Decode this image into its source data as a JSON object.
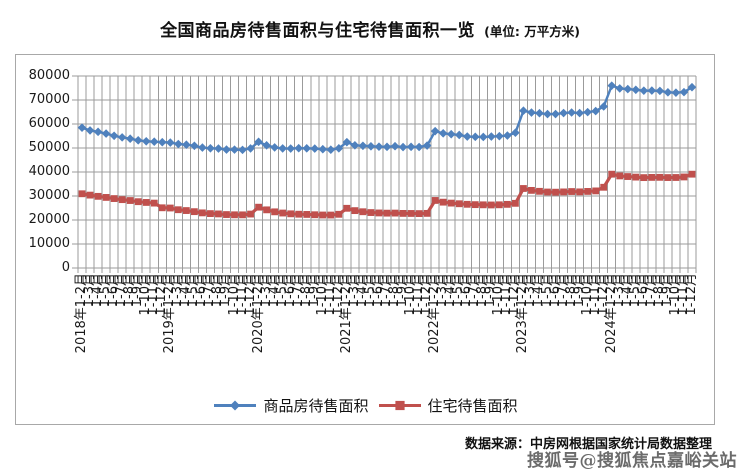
{
  "title": {
    "main": "全国商品房待售面积与住宅待售面积一览",
    "unit": "(单位: 万平方米)"
  },
  "legend": [
    {
      "label": "商品房待售面积",
      "color": "#4F81BD",
      "marker": "diamond"
    },
    {
      "label": "住宅待售面积",
      "color": "#C0504D",
      "marker": "square"
    }
  ],
  "footer": {
    "source": "数据来源：中房网根据国家统计局数据整理",
    "watermark": "搜狐号@搜狐焦点嘉峪关站"
  },
  "chart_data": {
    "type": "line",
    "title": "全国商品房待售面积与住宅待售面积一览",
    "unit": "万平方米",
    "xlabel": "",
    "ylabel": "",
    "ylim": [
      0,
      80000
    ],
    "yticks": [
      0,
      10000,
      20000,
      30000,
      40000,
      50000,
      60000,
      70000,
      80000
    ],
    "grid": "both",
    "legend_position": "bottom",
    "categories": [
      "2018年1-2月",
      "1-3月",
      "1-4月",
      "1-5月",
      "1-6月",
      "1-7月",
      "1-8月",
      "1-9月",
      "1-10月",
      "1-11月",
      "1-12月",
      "2019年1-2月",
      "1-3月",
      "1-4月",
      "1-5月",
      "1-6月",
      "1-7月",
      "1-8月",
      "1-9月",
      "1-10月",
      "1-11月",
      "1-12月",
      "2020年1-2月",
      "1-3月",
      "1-4月",
      "1-5月",
      "1-6月",
      "1-7月",
      "1-8月",
      "1-9月",
      "1-10月",
      "1-11月",
      "1-12月",
      "2021年1-2月",
      "1-3月",
      "1-4月",
      "1-5月",
      "1-6月",
      "1-7月",
      "1-8月",
      "1-9月",
      "1-10月",
      "1-11月",
      "1-12月",
      "2022年1-2月",
      "1-3月",
      "1-4月",
      "1-5月",
      "1-6月",
      "1-7月",
      "1-8月",
      "1-9月",
      "1-10月",
      "1-11月",
      "1-12月",
      "2023年1-2月",
      "1-3月",
      "1-4月",
      "1-5月",
      "1-6月",
      "1-7月",
      "1-8月",
      "1-9月",
      "1-10月",
      "1-11月",
      "1-12月",
      "2024年1-2月",
      "1-3月",
      "1-4月",
      "1-5月",
      "1-6月",
      "1-7月",
      "1-8月",
      "1-9月",
      "1-10月",
      "1-11月",
      "1-12月"
    ],
    "series": [
      {
        "name": "商品房待售面积",
        "color": "#4F81BD",
        "marker": "diamond",
        "line_width": 2.4,
        "values": [
          58468,
          57329,
          56726,
          56010,
          55083,
          54428,
          53873,
          53191,
          52789,
          52627,
          52414,
          52251,
          51646,
          51380,
          50928,
          50162,
          49876,
          49784,
          49346,
          49323,
          49221,
          49821,
          52563,
          51104,
          50248,
          49821,
          49775,
          49912,
          49864,
          49747,
          49492,
          49287,
          49850,
          52425,
          51115,
          50916,
          50723,
          50543,
          50492,
          50738,
          50385,
          50494,
          50421,
          51023,
          57026,
          56113,
          55735,
          55433,
          54784,
          54655,
          54605,
          54767,
          54936,
          55203,
          56366,
          65528,
          64770,
          64487,
          64120,
          64159,
          64564,
          64795,
          64537,
          64950,
          65385,
          67295,
          75969,
          74833,
          74553,
          74256,
          73894,
          73926,
          73802,
          73191,
          73057,
          73286,
          75327
        ]
      },
      {
        "name": "住宅待售面积",
        "color": "#C0504D",
        "marker": "square",
        "line_width": 3.2,
        "values": [
          30930,
          30370,
          29857,
          29409,
          28928,
          28476,
          28112,
          27629,
          27316,
          27037,
          25091,
          24994,
          24281,
          23934,
          23473,
          22972,
          22668,
          22536,
          22266,
          22168,
          22150,
          22473,
          25337,
          24230,
          23404,
          22904,
          22579,
          22414,
          22324,
          22190,
          22083,
          22065,
          22379,
          24876,
          23908,
          23440,
          23099,
          22936,
          22853,
          22881,
          22751,
          22725,
          22670,
          22761,
          28145,
          27430,
          27039,
          26772,
          26540,
          26398,
          26327,
          26261,
          26334,
          26521,
          26947,
          33129,
          32340,
          31953,
          31664,
          31591,
          31703,
          31857,
          31724,
          31909,
          32123,
          33639,
          39088,
          38359,
          38104,
          37869,
          37661,
          37748,
          37776,
          37682,
          37710,
          37931,
          39088
        ]
      }
    ]
  }
}
